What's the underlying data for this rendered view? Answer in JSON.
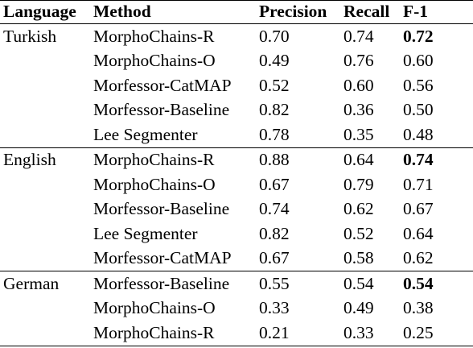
{
  "table": {
    "headers": [
      "Language",
      "Method",
      "Precision",
      "Recall",
      "F-1"
    ],
    "groups": [
      {
        "language": "Turkish",
        "rows": [
          {
            "method": "MorphoChains-R",
            "precision": "0.70",
            "recall": "0.74",
            "f1": "0.72",
            "best": true
          },
          {
            "method": "MorphoChains-O",
            "precision": "0.49",
            "recall": "0.76",
            "f1": "0.60",
            "best": false
          },
          {
            "method": "Morfessor-CatMAP",
            "precision": "0.52",
            "recall": "0.60",
            "f1": "0.56",
            "best": false
          },
          {
            "method": "Morfessor-Baseline",
            "precision": "0.82",
            "recall": "0.36",
            "f1": "0.50",
            "best": false
          },
          {
            "method": "Lee Segmenter",
            "precision": "0.78",
            "recall": "0.35",
            "f1": "0.48",
            "best": false
          }
        ]
      },
      {
        "language": "English",
        "rows": [
          {
            "method": "MorphoChains-R",
            "precision": "0.88",
            "recall": "0.64",
            "f1": "0.74",
            "best": true
          },
          {
            "method": "MorphoChains-O",
            "precision": "0.67",
            "recall": "0.79",
            "f1": "0.71",
            "best": false
          },
          {
            "method": "Morfessor-Baseline",
            "precision": "0.74",
            "recall": "0.62",
            "f1": "0.67",
            "best": false
          },
          {
            "method": "Lee Segmenter",
            "precision": "0.82",
            "recall": "0.52",
            "f1": "0.64",
            "best": false
          },
          {
            "method": "Morfessor-CatMAP",
            "precision": "0.67",
            "recall": "0.58",
            "f1": "0.62",
            "best": false
          }
        ]
      },
      {
        "language": "German",
        "rows": [
          {
            "method": "Morfessor-Baseline",
            "precision": "0.55",
            "recall": "0.54",
            "f1": "0.54",
            "best": true
          },
          {
            "method": "MorphoChains-O",
            "precision": "0.33",
            "recall": "0.49",
            "f1": "0.38",
            "best": false
          },
          {
            "method": "MorphoChains-R",
            "precision": "0.21",
            "recall": "0.33",
            "f1": "0.25",
            "best": false
          }
        ]
      }
    ]
  }
}
